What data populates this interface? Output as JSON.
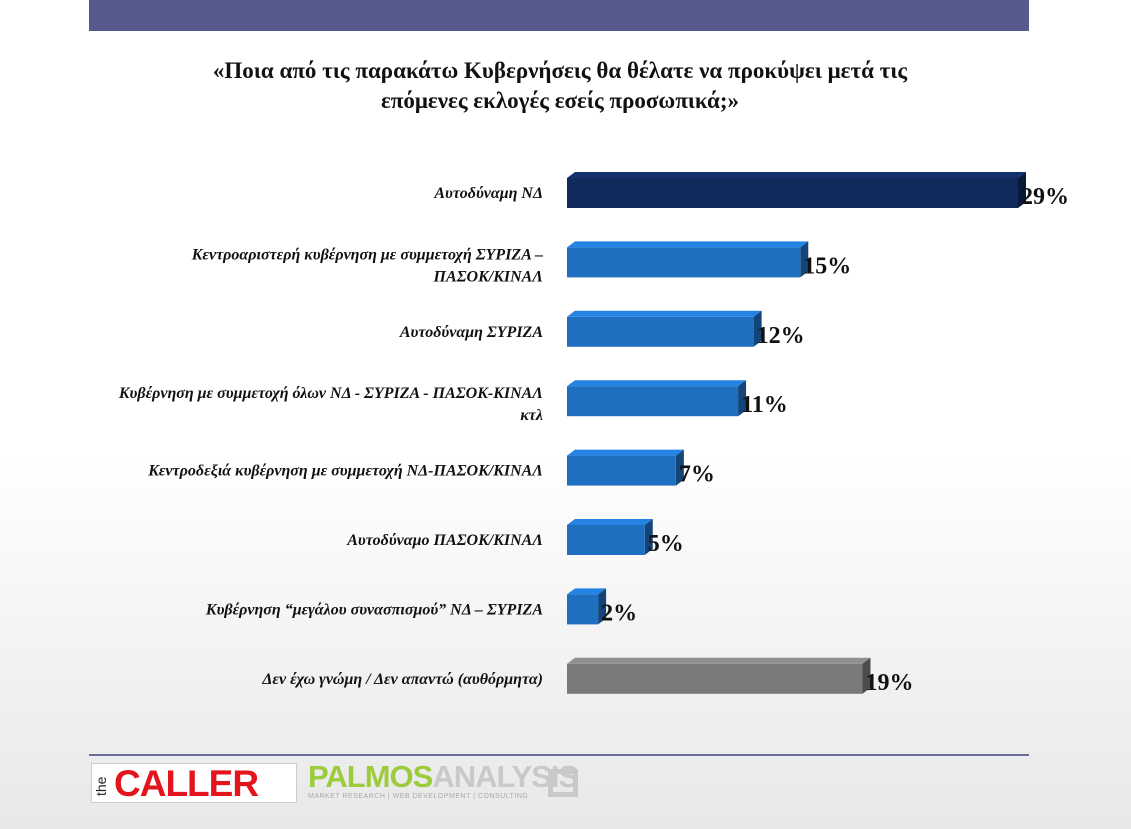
{
  "title_line1": "«Ποια από τις παρακάτω Κυβερνήσεις θα θέλατε να προκύψει μετά τις",
  "title_line2": "επόμενες εκλογές εσείς προσωπικά;»",
  "logos": {
    "caller_the": "the",
    "caller_word": "CALLER",
    "palmos_main": "PALMOS",
    "palmos_accent": "ANALYSIS",
    "palmos_sub": "MARKET RESEARCH | WEB DEVELOPMENT | CONSULTING"
  },
  "colors": {
    "highlight": "#102a5c",
    "bar": "#1f6fc1",
    "neutral": "#7a7a7a",
    "band": "#565a8c"
  },
  "chart_data": {
    "type": "bar",
    "orientation": "horizontal",
    "title": "«Ποια από τις παρακάτω Κυβερνήσεις θα θέλατε να προκύψει μετά τις επόμενες εκλογές εσείς προσωπικά;»",
    "categories": [
      [
        "Αυτοδύναμη ΝΔ"
      ],
      [
        "Κεντροαριστερή κυβέρνηση με συμμετοχή ΣΥΡΙΖΑ –",
        "ΠΑΣΟΚ/ΚΙΝΑΛ"
      ],
      [
        "Αυτοδύναμη ΣΥΡΙΖΑ"
      ],
      [
        "Κυβέρνηση με συμμετοχή όλων ΝΔ - ΣΥΡΙΖΑ - ΠΑΣΟΚ-ΚΙΝΑΛ",
        "κτλ"
      ],
      [
        "Κεντροδεξιά κυβέρνηση με συμμετοχή ΝΔ-ΠΑΣΟΚ/ΚΙΝΑΛ"
      ],
      [
        "Αυτοδύναμο ΠΑΣΟΚ/ΚΙΝΑΛ"
      ],
      [
        "Κυβέρνηση “μεγάλου συνασπισμού” ΝΔ – ΣΥΡΙΖΑ"
      ],
      [
        "Δεν έχω γνώμη / Δεν απαντώ (αυθόρμητα)"
      ]
    ],
    "values": [
      29,
      15,
      12,
      11,
      7,
      5,
      2,
      19
    ],
    "value_labels": [
      "29%",
      "15%",
      "12%",
      "11%",
      "7%",
      "5%",
      "2%",
      "19%"
    ],
    "bar_colors": [
      "highlight",
      "bar",
      "bar",
      "bar",
      "bar",
      "bar",
      "bar",
      "neutral"
    ],
    "unit": "%",
    "xlim": [
      0,
      29
    ],
    "grid": false,
    "legend": "none"
  }
}
